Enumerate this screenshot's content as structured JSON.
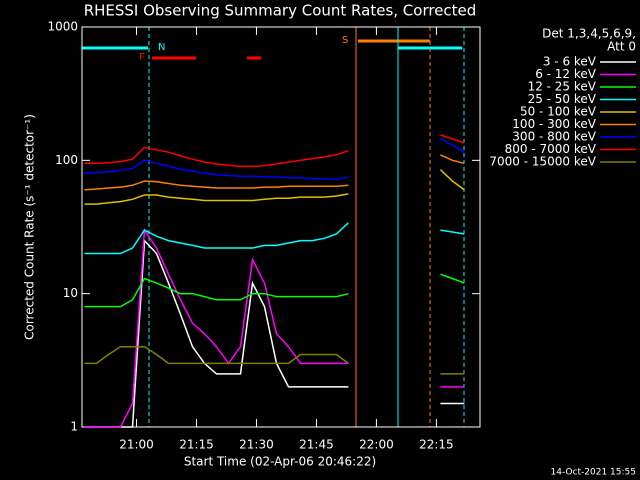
{
  "chart_data": {
    "type": "line",
    "title": "RHESSI Observing Summary Count Rates, Corrected",
    "x_label": "Start Time (02-Apr-06 20:46:22)",
    "y_label": "Corrected Count Rate (s⁻¹ detector⁻¹)",
    "footer": "14-Oct-2021 15:55",
    "legend_header": [
      "Det 1,3,4,5,6,9,",
      "Att 0"
    ],
    "flags": [
      "N",
      "F",
      "S"
    ],
    "log_y": true,
    "xlim": [
      1246.37,
      1345.9
    ],
    "ylim": [
      1,
      1000
    ],
    "yticks": [
      1,
      10,
      100,
      1000
    ],
    "xticks": [
      {
        "value": 1260,
        "label": "21:00"
      },
      {
        "value": 1275,
        "label": "21:15"
      },
      {
        "value": 1290,
        "label": "21:30"
      },
      {
        "value": 1305,
        "label": "21:45"
      },
      {
        "value": 1320,
        "label": "22:00"
      },
      {
        "value": 1335,
        "label": "22:15"
      }
    ],
    "x": [
      1247,
      1250,
      1253,
      1256,
      1259,
      1262,
      1265,
      1268,
      1271,
      1274,
      1277,
      1280,
      1283,
      1286,
      1289,
      1292,
      1295,
      1298,
      1301,
      1304,
      1307,
      1310,
      1313,
      1320,
      1336,
      1339,
      1342
    ],
    "series": [
      {
        "name": "3 - 6 keV",
        "color": "#ffffff",
        "values": [
          1,
          1,
          1,
          1,
          1,
          25,
          20,
          12,
          7,
          4,
          3,
          2.5,
          2.5,
          2.5,
          12,
          8,
          3,
          2,
          2,
          2,
          2,
          2,
          2,
          null,
          1.5,
          1.5,
          1.5
        ]
      },
      {
        "name": "6 - 12 keV",
        "color": "#ff00ff",
        "values": [
          1,
          1,
          1,
          1,
          1.5,
          30,
          22,
          14,
          9,
          6,
          5,
          4,
          3,
          4,
          18,
          12,
          5,
          4,
          3,
          3,
          3,
          3,
          3,
          null,
          2,
          2,
          2
        ]
      },
      {
        "name": "12 - 25 keV",
        "color": "#00ff00",
        "values": [
          8,
          8,
          8,
          8,
          9,
          13,
          12,
          11,
          10,
          10,
          9.5,
          9,
          9,
          9,
          10,
          10,
          9.5,
          9.5,
          9.5,
          9.5,
          9.5,
          9.5,
          10,
          null,
          14,
          13,
          12
        ]
      },
      {
        "name": "25 - 50 keV",
        "color": "#00ffff",
        "values": [
          20,
          20,
          20,
          20,
          22,
          30,
          27,
          25,
          24,
          23,
          22,
          22,
          22,
          22,
          22,
          23,
          23,
          24,
          25,
          25,
          26,
          28,
          34,
          null,
          30,
          29,
          28
        ]
      },
      {
        "name": "50 - 100 keV",
        "color": "#e0c000",
        "values": [
          47,
          47,
          48,
          49,
          51,
          55,
          55,
          53,
          52,
          51,
          50,
          50,
          50,
          50,
          50,
          51,
          52,
          52,
          53,
          53,
          53,
          54,
          56,
          null,
          85,
          70,
          60
        ]
      },
      {
        "name": "100 - 300 keV",
        "color": "#ff8000",
        "values": [
          60,
          61,
          62,
          63,
          65,
          70,
          69,
          67,
          65,
          64,
          63,
          62,
          62,
          62,
          62,
          63,
          63,
          64,
          64,
          64,
          64,
          64,
          65,
          null,
          110,
          100,
          95
        ]
      },
      {
        "name": "300 - 800 keV",
        "color": "#0000ff",
        "values": [
          80,
          81,
          82,
          84,
          87,
          100,
          95,
          90,
          86,
          83,
          80,
          78,
          77,
          76,
          76,
          75,
          75,
          74,
          74,
          73,
          73,
          72,
          75,
          null,
          145,
          130,
          115
        ]
      },
      {
        "name": "800 - 7000 keV",
        "color": "#ff0000",
        "values": [
          95,
          95,
          96,
          98,
          102,
          125,
          120,
          115,
          108,
          102,
          97,
          94,
          92,
          90,
          90,
          91,
          94,
          97,
          100,
          103,
          106,
          110,
          118,
          null,
          155,
          145,
          135
        ]
      },
      {
        "name": "7000 - 15000 keV",
        "color": "#808000",
        "values": [
          3,
          3,
          3.5,
          4,
          4,
          4,
          3.5,
          3,
          3,
          3,
          3,
          3,
          3,
          3,
          3,
          3,
          3,
          3,
          3.5,
          3.5,
          3.5,
          3.5,
          3,
          null,
          2.5,
          2.5,
          2.5
        ]
      }
    ]
  }
}
